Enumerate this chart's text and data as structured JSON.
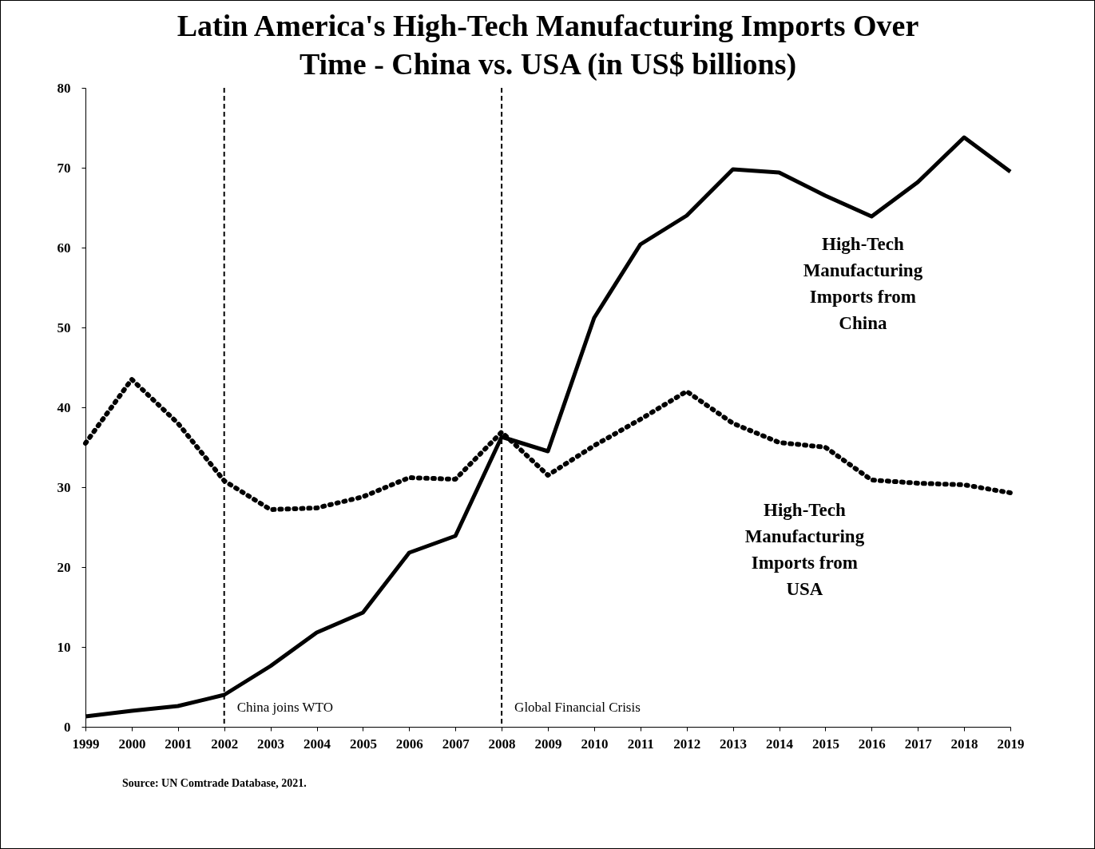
{
  "chart_data": {
    "type": "line",
    "title": "Latin America's High-Tech Manufacturing Imports Over Time - China vs. USA (in US$ billions)",
    "x": [
      1999,
      2000,
      2001,
      2002,
      2003,
      2004,
      2005,
      2006,
      2007,
      2008,
      2009,
      2010,
      2011,
      2012,
      2013,
      2014,
      2015,
      2016,
      2017,
      2018,
      2019
    ],
    "series": [
      {
        "name": "High-Tech Manufacturing Imports from China",
        "color": "#000000",
        "line_style": "solid",
        "values": [
          1.3,
          2.0,
          2.6,
          4.0,
          7.6,
          11.8,
          14.3,
          21.8,
          23.9,
          36.3,
          34.5,
          51.2,
          60.4,
          64.0,
          69.8,
          69.4,
          66.5,
          63.9,
          68.2,
          73.8,
          69.5
        ]
      },
      {
        "name": "High-Tech Manufacturing Imports from USA",
        "color": "#000000",
        "line_style": "dotted",
        "values": [
          35.5,
          43.5,
          38.0,
          30.8,
          27.2,
          27.4,
          28.8,
          31.2,
          31.0,
          36.9,
          31.5,
          35.2,
          38.5,
          42.0,
          38.0,
          35.6,
          35.0,
          30.9,
          30.5,
          30.3,
          29.3
        ]
      }
    ],
    "xlim": [
      1999,
      2019
    ],
    "xticks": [
      1999,
      2000,
      2001,
      2002,
      2003,
      2004,
      2005,
      2006,
      2007,
      2008,
      2009,
      2010,
      2011,
      2012,
      2013,
      2014,
      2015,
      2016,
      2017,
      2018,
      2019
    ],
    "ylim": [
      0,
      80
    ],
    "yticks": [
      0,
      10,
      20,
      30,
      40,
      50,
      60,
      70,
      80
    ],
    "ref_lines": [
      {
        "axis": "x",
        "value": 2002,
        "label": "China joins WTO",
        "line_style": "dashed"
      },
      {
        "axis": "x",
        "value": 2008,
        "label": "Global Financial Crisis",
        "line_style": "dashed"
      }
    ],
    "annotations": [
      "Source: UN Comtrade Database, 2021."
    ],
    "grid": false,
    "marker": "none"
  }
}
